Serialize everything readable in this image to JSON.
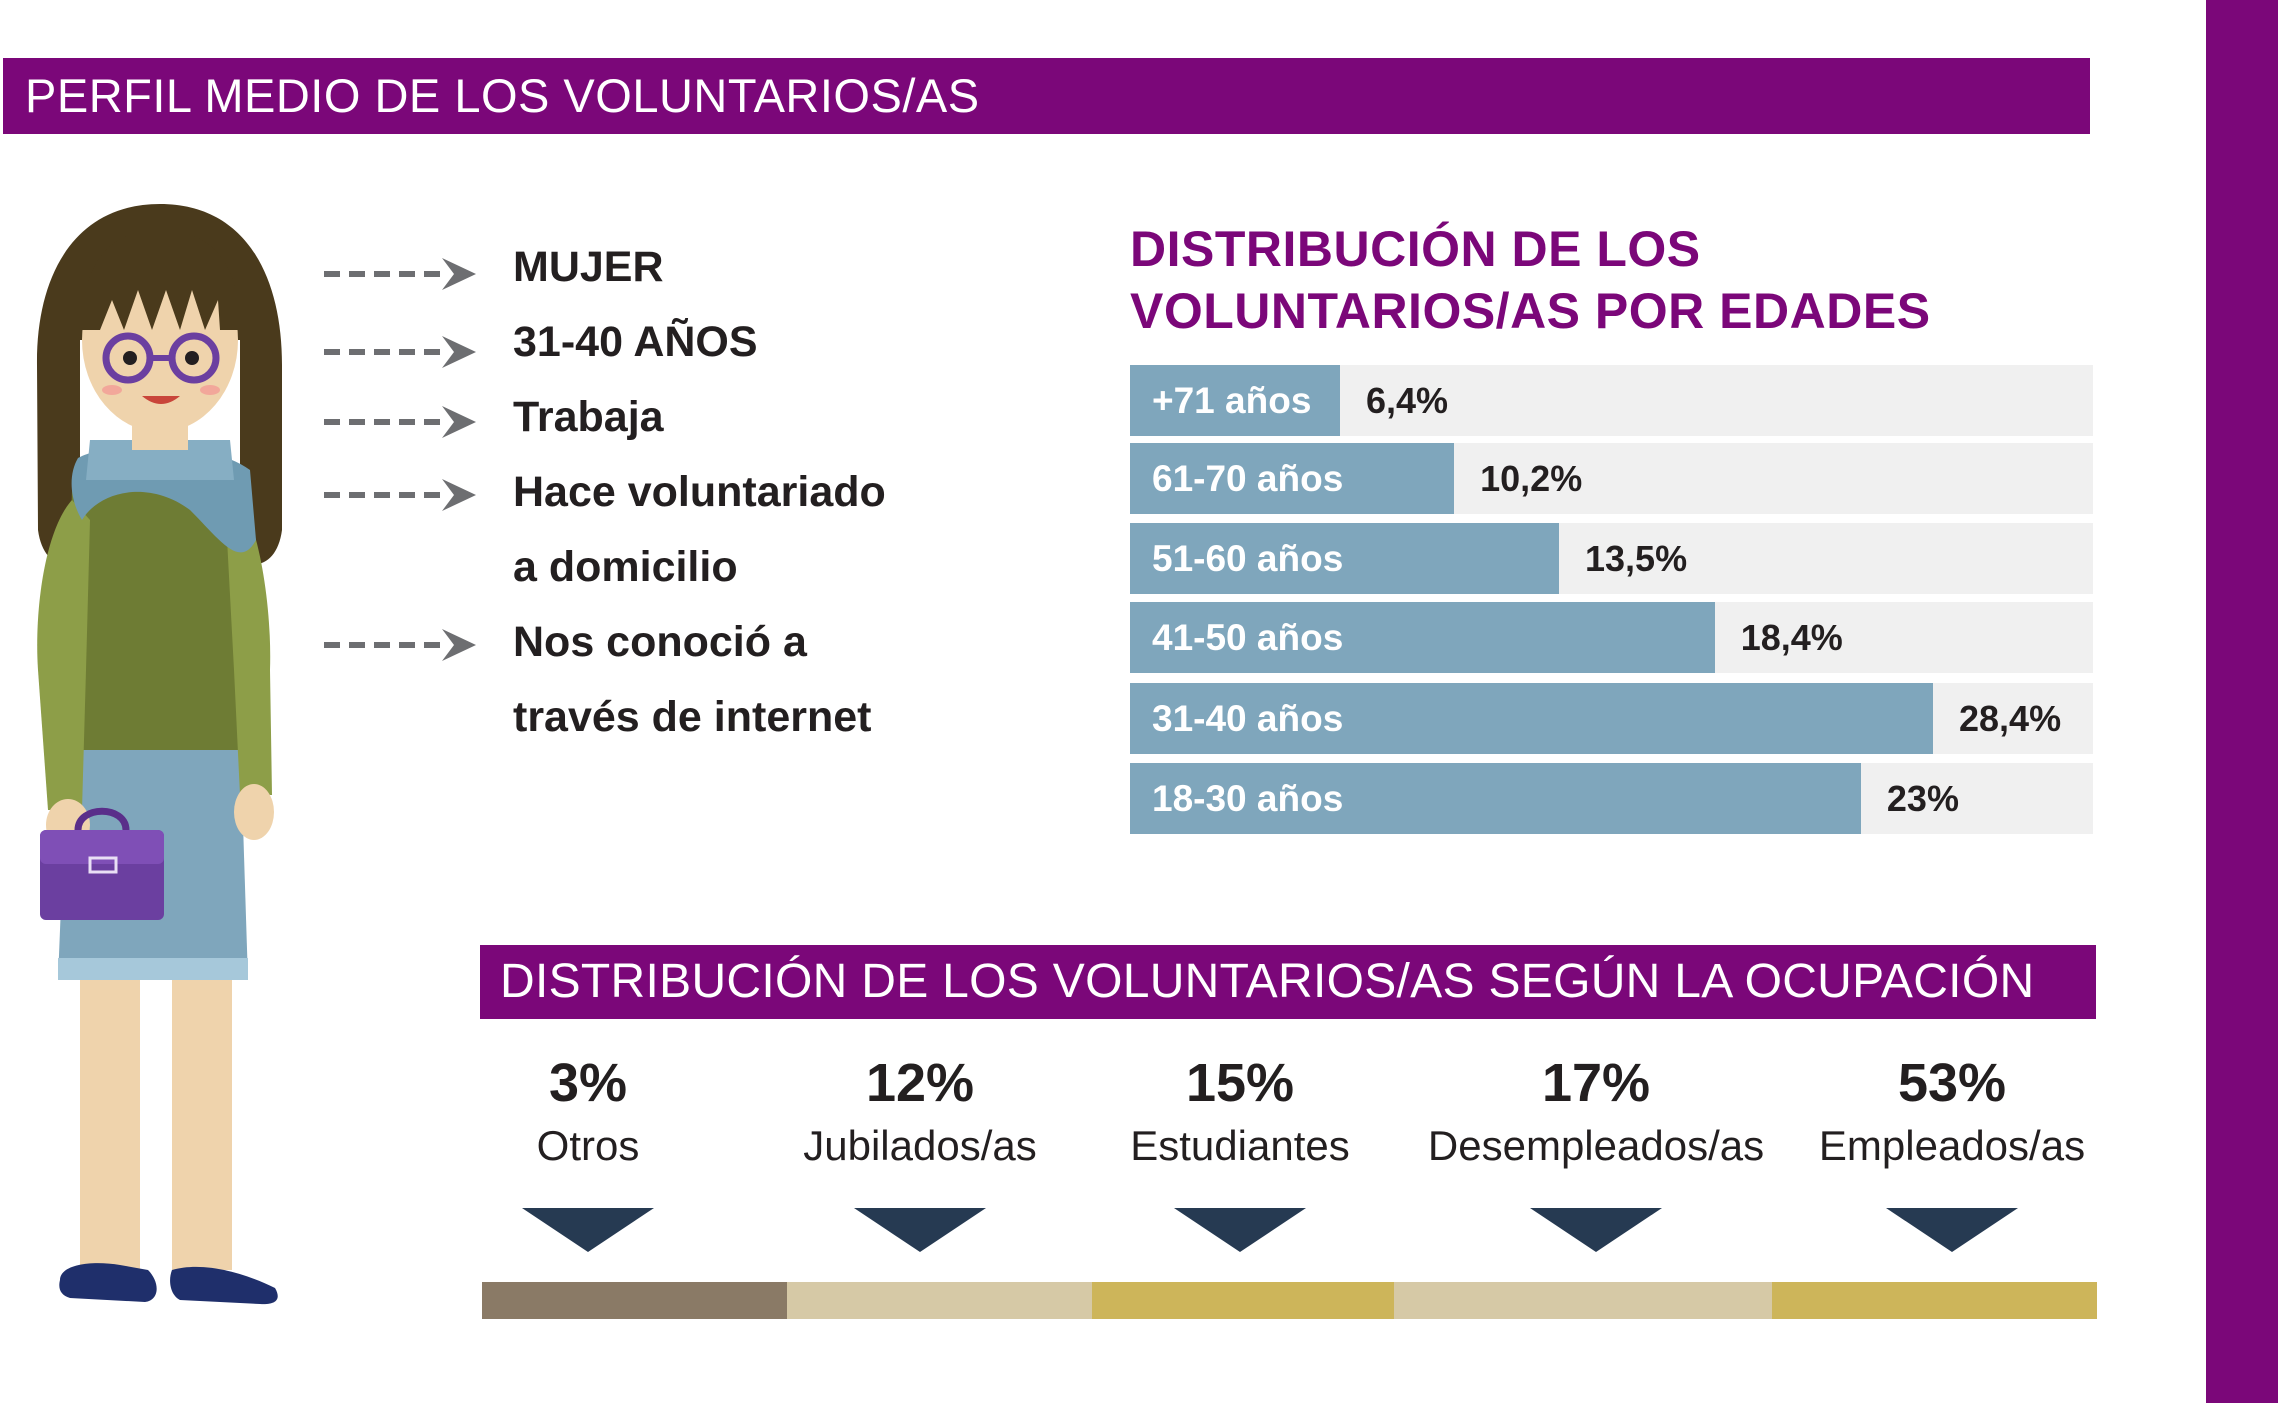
{
  "header": {
    "title": "PERFIL MEDIO DE LOS VOLUNTARIOS/AS"
  },
  "profile": {
    "items": [
      {
        "line1": "MUJER"
      },
      {
        "line1": "31-40 AÑOS"
      },
      {
        "line1": "Trabaja"
      },
      {
        "line1": "Hace voluntariado",
        "line2": "a domicilio"
      },
      {
        "line1": "Nos conoció a",
        "line2": "través de internet"
      }
    ]
  },
  "colors": {
    "brand": "#7b0779",
    "bar": "#7fa6bc",
    "bar_track": "#f0f0f0",
    "arrow": "#6d6e71",
    "triangle": "#263a52",
    "seg_otros": "#8a7a66",
    "seg_jubilados": "#d6c9a6",
    "seg_estudiantes": "#cdb55a",
    "seg_desempleados": "#d6c9a6",
    "seg_empleados": "#cdb55a"
  },
  "chart_data": [
    {
      "type": "bar",
      "orientation": "horizontal",
      "title": "DISTRIBUCIÓN DE LOS VOLUNTARIOS/AS POR EDADES",
      "categories": [
        "+71 años",
        "61-70 años",
        "51-60 años",
        "41-50 años",
        "31-40 años",
        "18-30 años"
      ],
      "values": [
        6.4,
        10.2,
        13.5,
        18.4,
        28.4,
        23
      ],
      "value_labels": [
        "6,4%",
        "10,2%",
        "13,5%",
        "18,4%",
        "28,4%",
        "23%"
      ],
      "xlim": [
        0,
        100
      ]
    },
    {
      "type": "bar",
      "title": "DISTRIBUCIÓN DE LOS VOLUNTARIOS/AS SEGÚN LA OCUPACIÓN",
      "categories": [
        "Otros",
        "Jubilados/as",
        "Estudiantes",
        "Desempleados/as",
        "Empleados/as"
      ],
      "values": [
        3,
        12,
        15,
        17,
        53
      ],
      "value_labels": [
        "3%",
        "12%",
        "15%",
        "17%",
        "53%"
      ]
    }
  ]
}
